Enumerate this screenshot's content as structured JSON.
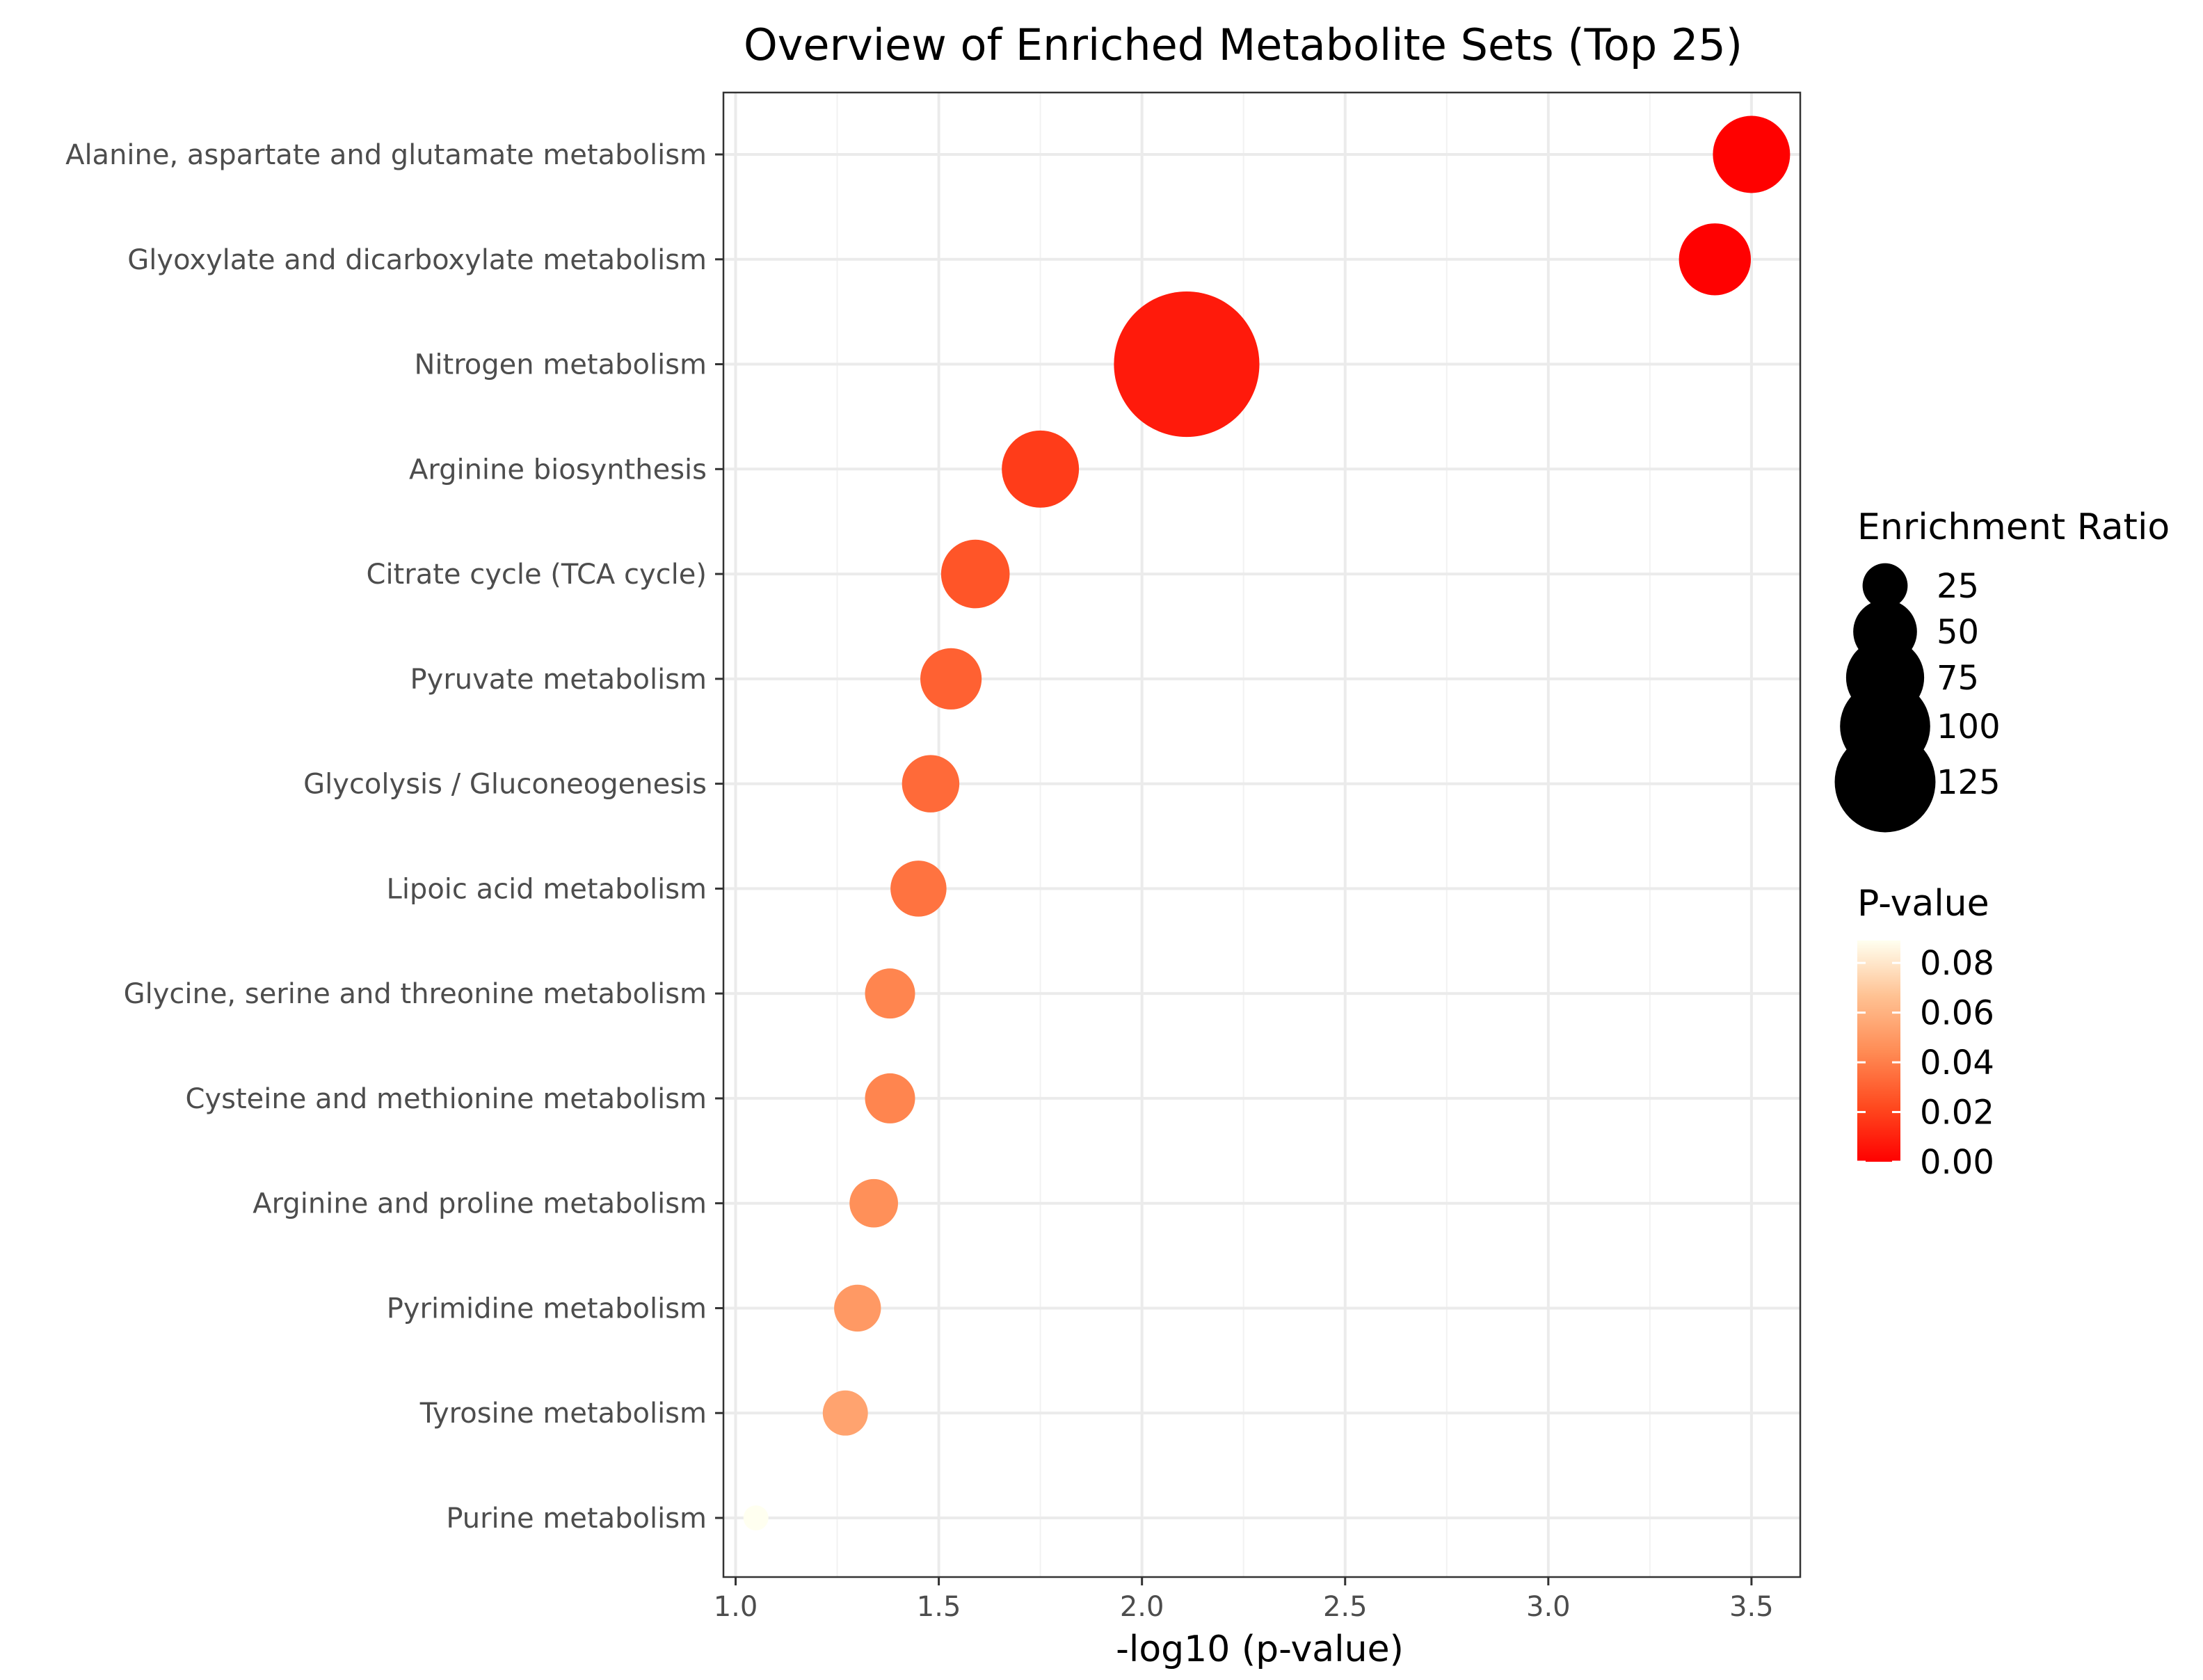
{
  "chart_data": {
    "type": "scatter",
    "title": "Overview of Enriched Metabolite Sets (Top 25)",
    "xlabel": "-log10 (p-value)",
    "ylabel": "",
    "xlim": [
      0.97,
      3.62
    ],
    "x_ticks": [
      1.0,
      1.5,
      2.0,
      2.5,
      3.0,
      3.5
    ],
    "x_tick_labels": [
      "1.0",
      "1.5",
      "2.0",
      "2.5",
      "3.0",
      "3.5"
    ],
    "grid": true,
    "legend_position": "right",
    "points": [
      {
        "category": "Alanine, aspartate and glutamate metabolism",
        "x": 3.5,
        "p_value": 0.0003,
        "enrichment_ratio": 38
      },
      {
        "category": "Glyoxylate and dicarboxylate metabolism",
        "x": 3.41,
        "p_value": 0.0004,
        "enrichment_ratio": 33
      },
      {
        "category": "Nitrogen metabolism",
        "x": 2.11,
        "p_value": 0.0077,
        "enrichment_ratio": 135
      },
      {
        "category": "Arginine biosynthesis",
        "x": 1.75,
        "p_value": 0.018,
        "enrichment_ratio": 38
      },
      {
        "category": "Citrate cycle (TCA cycle)",
        "x": 1.59,
        "p_value": 0.026,
        "enrichment_ratio": 30
      },
      {
        "category": "Pyruvate metabolism",
        "x": 1.53,
        "p_value": 0.03,
        "enrichment_ratio": 24
      },
      {
        "category": "Glycolysis / Gluconeogenesis",
        "x": 1.48,
        "p_value": 0.033,
        "enrichment_ratio": 21
      },
      {
        "category": "Lipoic acid metabolism",
        "x": 1.45,
        "p_value": 0.036,
        "enrichment_ratio": 20
      },
      {
        "category": "Glycine, serine and threonine metabolism",
        "x": 1.38,
        "p_value": 0.042,
        "enrichment_ratio": 16
      },
      {
        "category": "Cysteine and methionine metabolism",
        "x": 1.38,
        "p_value": 0.042,
        "enrichment_ratio": 16
      },
      {
        "category": "Arginine and proline metabolism",
        "x": 1.34,
        "p_value": 0.046,
        "enrichment_ratio": 15
      },
      {
        "category": "Pyrimidine metabolism",
        "x": 1.3,
        "p_value": 0.05,
        "enrichment_ratio": 14
      },
      {
        "category": "Tyrosine metabolism",
        "x": 1.27,
        "p_value": 0.054,
        "enrichment_ratio": 13
      },
      {
        "category": "Purine metabolism",
        "x": 1.05,
        "p_value": 0.089,
        "enrichment_ratio": 4
      }
    ],
    "size_legend": {
      "title": "Enrichment Ratio",
      "values": [
        25,
        50,
        75,
        100,
        125
      ],
      "labels": [
        "25",
        "50",
        "75",
        "100",
        "125"
      ]
    },
    "color_legend": {
      "title": "P-value",
      "range": [
        0.0,
        0.089
      ],
      "ticks": [
        0.08,
        0.06,
        0.04,
        0.02,
        0.0
      ],
      "tick_labels": [
        "0.08",
        "0.06",
        "0.04",
        "0.02",
        "0.00"
      ],
      "color_low": "#ff0000",
      "color_high": "#fffff0"
    }
  }
}
